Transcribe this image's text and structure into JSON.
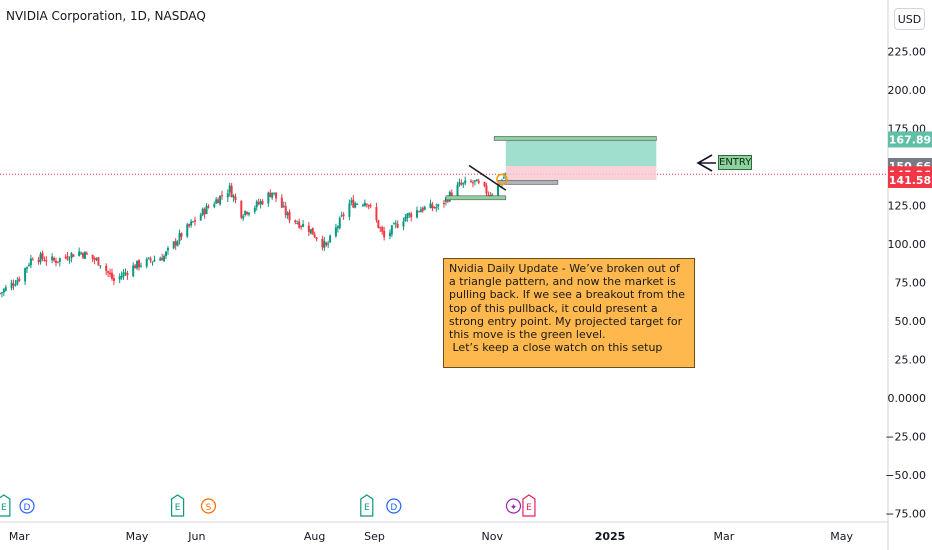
{
  "header": {
    "title": "NVIDIA Corporation, 1D, NASDAQ",
    "currency": "USD"
  },
  "chart_data": {
    "type": "candlestick",
    "y_axis": {
      "ticks": [
        "225.00",
        "200.00",
        "175.00",
        "125.00",
        "100.00",
        "75.00",
        "50.00",
        "25.00",
        "0.0000",
        "−25.00",
        "−50.00",
        "−75.00"
      ],
      "tick_values": [
        225,
        200,
        175,
        125,
        100,
        75,
        50,
        25,
        0,
        -25,
        -50,
        -75
      ],
      "range": [
        -75,
        250
      ]
    },
    "x_axis": {
      "ticks": [
        "Mar",
        "May",
        "Jun",
        "Aug",
        "Sep",
        "Nov",
        "2025",
        "Mar",
        "May"
      ],
      "range": [
        "2024-02-20",
        "2025-05-25"
      ]
    },
    "price_labels": [
      {
        "text": "167.89",
        "value": 167.89,
        "color": "#5fbfa7"
      },
      {
        "text": "150.66",
        "value": 150.66,
        "color": "#787b86"
      },
      {
        "text": "145.26",
        "value": 145.26,
        "color": "#f23645"
      },
      {
        "text": "141.58",
        "value": 141.58,
        "color": "#f23645"
      }
    ],
    "last_price": 145.26,
    "price_path": [
      [
        "2024-02-20",
        68
      ],
      [
        "2024-03-01",
        78
      ],
      [
        "2024-03-08",
        92
      ],
      [
        "2024-03-19",
        89
      ],
      [
        "2024-04-01",
        95
      ],
      [
        "2024-04-12",
        88
      ],
      [
        "2024-04-19",
        76
      ],
      [
        "2024-04-30",
        86
      ],
      [
        "2024-05-15",
        92
      ],
      [
        "2024-05-24",
        106
      ],
      [
        "2024-06-05",
        122
      ],
      [
        "2024-06-18",
        136
      ],
      [
        "2024-06-24",
        120
      ],
      [
        "2024-07-03",
        126
      ],
      [
        "2024-07-10",
        134
      ],
      [
        "2024-07-18",
        118
      ],
      [
        "2024-07-29",
        110
      ],
      [
        "2024-08-07",
        98
      ],
      [
        "2024-08-19",
        126
      ],
      [
        "2024-08-28",
        128
      ],
      [
        "2024-09-06",
        104
      ],
      [
        "2024-09-16",
        117
      ],
      [
        "2024-09-25",
        123
      ],
      [
        "2024-10-04",
        124
      ],
      [
        "2024-10-15",
        138
      ],
      [
        "2024-10-23",
        140
      ],
      [
        "2024-10-31",
        132
      ],
      [
        "2024-11-08",
        145
      ]
    ],
    "events": [
      {
        "letter": "E",
        "date": "2024-02-22",
        "color": "#089981"
      },
      {
        "letter": "D",
        "date": "2024-03-05",
        "color": "#2962ff"
      },
      {
        "letter": "E",
        "date": "2024-05-22",
        "color": "#089981"
      },
      {
        "letter": "S",
        "date": "2024-06-07",
        "color": "#ff6d00"
      },
      {
        "letter": "E",
        "date": "2024-08-28",
        "color": "#089981"
      },
      {
        "letter": "D",
        "date": "2024-09-11",
        "color": "#2962ff"
      },
      {
        "letter": "✦",
        "date": "2024-11-12",
        "color": "#9c27b0"
      },
      {
        "letter": "E",
        "date": "2024-11-20",
        "color": "#e91e63"
      }
    ]
  },
  "annotation": {
    "text": "Nvidia Daily Update - We’ve broken out of a triangle pattern, and now the market is pulling back. If we see a breakout from the top of this pullback, it could present a strong entry point. My projected target for this move is the green level.\n Let’s keep a close watch on this setup"
  },
  "entry_label": "ENTRY",
  "colors": {
    "up": "#089981",
    "down": "#f23645",
    "target_zone": "#8fd9c4",
    "stop_zone": "#f8c9cf"
  }
}
